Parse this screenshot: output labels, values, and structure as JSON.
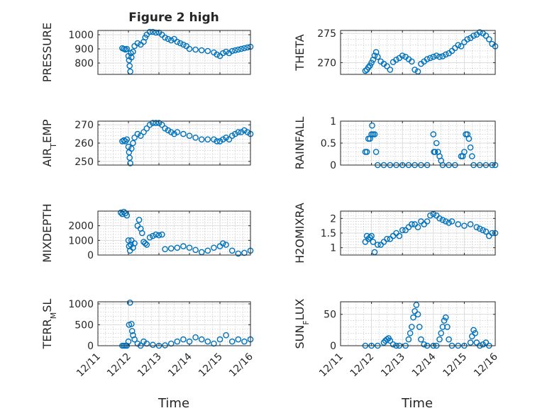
{
  "figure": {
    "title": "Figure 2 high"
  },
  "chart_data": [
    {
      "type": "scatter",
      "ylabel": "PRESSURE",
      "title": "Figure 2 high",
      "ylim": [
        720,
        1030
      ],
      "yticks": [
        800,
        900,
        1000
      ],
      "xlim": [
        0,
        5
      ],
      "xticks": [
        "12/11",
        "12/12",
        "12/13",
        "12/14",
        "12/15",
        "12/16"
      ],
      "x": [
        0.8,
        0.85,
        0.9,
        0.95,
        1.0,
        1.02,
        1.04,
        1.06,
        1.08,
        1.1,
        1.15,
        1.2,
        1.3,
        1.4,
        1.5,
        1.55,
        1.6,
        1.7,
        1.8,
        1.9,
        2.0,
        2.1,
        2.2,
        2.3,
        2.4,
        2.5,
        2.6,
        2.7,
        2.8,
        2.9,
        3.0,
        3.2,
        3.4,
        3.6,
        3.8,
        3.9,
        4.0,
        4.1,
        4.2,
        4.3,
        4.4,
        4.5,
        4.6,
        4.7,
        4.8,
        4.9,
        5.0
      ],
      "y": [
        905,
        900,
        895,
        900,
        850,
        820,
        780,
        740,
        870,
        840,
        880,
        920,
        940,
        930,
        950,
        980,
        1000,
        1020,
        1020,
        1015,
        1015,
        1000,
        980,
        970,
        960,
        970,
        950,
        940,
        930,
        920,
        900,
        895,
        890,
        885,
        875,
        860,
        850,
        870,
        880,
        870,
        885,
        890,
        895,
        900,
        905,
        910,
        915
      ]
    },
    {
      "type": "scatter",
      "ylabel": "THETA",
      "ylim": [
        268,
        275.5
      ],
      "yticks": [
        270,
        275
      ],
      "xlim": [
        0,
        5
      ],
      "xticks": [
        "12/11",
        "12/12",
        "12/13",
        "12/14",
        "12/15",
        "12/16"
      ],
      "x": [
        0.8,
        0.85,
        0.9,
        0.95,
        1.0,
        1.05,
        1.1,
        1.15,
        1.2,
        1.3,
        1.4,
        1.5,
        1.6,
        1.7,
        1.8,
        1.9,
        2.0,
        2.1,
        2.2,
        2.3,
        2.4,
        2.5,
        2.6,
        2.7,
        2.8,
        2.9,
        3.0,
        3.1,
        3.2,
        3.3,
        3.4,
        3.5,
        3.6,
        3.7,
        3.8,
        3.9,
        4.0,
        4.1,
        4.2,
        4.3,
        4.4,
        4.5,
        4.6,
        4.7,
        4.8,
        4.9,
        5.0
      ],
      "y": [
        268.6,
        268.8,
        269.2,
        269.5,
        270.0,
        270.5,
        271.2,
        271.8,
        271.0,
        270.2,
        269.8,
        269.4,
        268.8,
        270.1,
        270.5,
        270.8,
        271.2,
        271.0,
        270.6,
        270.2,
        268.8,
        268.5,
        269.8,
        270.2,
        270.6,
        270.8,
        271.0,
        271.2,
        271.0,
        271.1,
        271.4,
        271.6,
        272.0,
        272.5,
        273.0,
        272.8,
        273.5,
        274.0,
        274.2,
        274.6,
        274.8,
        275.2,
        275.0,
        274.6,
        274.0,
        273.2,
        272.8
      ]
    },
    {
      "type": "scatter",
      "ylabel": "AIR_TEMP",
      "ylim": [
        248,
        272
      ],
      "yticks": [
        250,
        260,
        270
      ],
      "xlim": [
        0,
        5
      ],
      "xticks": [
        "12/11",
        "12/12",
        "12/13",
        "12/14",
        "12/15",
        "12/16"
      ],
      "x": [
        0.8,
        0.85,
        0.9,
        0.95,
        1.0,
        1.02,
        1.04,
        1.06,
        1.1,
        1.15,
        1.2,
        1.3,
        1.4,
        1.5,
        1.6,
        1.7,
        1.8,
        1.9,
        2.0,
        2.1,
        2.2,
        2.3,
        2.4,
        2.5,
        2.6,
        2.8,
        3.0,
        3.2,
        3.4,
        3.6,
        3.8,
        3.9,
        4.0,
        4.1,
        4.2,
        4.3,
        4.4,
        4.5,
        4.6,
        4.7,
        4.8,
        4.9,
        5.0
      ],
      "y": [
        261,
        261.5,
        261,
        262,
        258,
        255,
        252,
        249,
        257,
        260,
        263,
        265,
        264,
        266,
        268,
        270,
        271,
        271,
        271,
        270,
        268,
        267,
        266,
        265,
        266,
        265,
        264,
        263,
        262,
        262,
        262,
        261,
        261,
        262,
        263,
        262,
        264,
        265,
        266,
        266,
        267,
        266,
        265
      ]
    },
    {
      "type": "scatter",
      "ylabel": "RAINFALL",
      "ylim": [
        0,
        1
      ],
      "yticks": [
        0,
        0.5,
        1
      ],
      "xlim": [
        0,
        5
      ],
      "xticks": [
        "12/11",
        "12/12",
        "12/13",
        "12/14",
        "12/15",
        "12/16"
      ],
      "x": [
        0.8,
        0.85,
        0.9,
        0.95,
        1.0,
        1.02,
        1.05,
        1.1,
        1.15,
        1.2,
        1.4,
        1.6,
        1.8,
        2.0,
        2.2,
        2.4,
        2.6,
        2.8,
        3.0,
        3.02,
        3.05,
        3.1,
        3.15,
        3.2,
        3.25,
        3.3,
        3.5,
        3.7,
        3.9,
        3.95,
        4.0,
        4.05,
        4.1,
        4.15,
        4.2,
        4.25,
        4.3,
        4.5,
        4.7,
        4.9,
        5.0
      ],
      "y": [
        0.3,
        0.3,
        0.6,
        0.6,
        0.7,
        0.9,
        0.7,
        0.7,
        0.3,
        0,
        0,
        0,
        0,
        0,
        0,
        0,
        0,
        0,
        0.7,
        0.3,
        0.3,
        0.5,
        0.3,
        0.2,
        0.1,
        0,
        0,
        0,
        0.2,
        0.2,
        0.3,
        0.7,
        0.7,
        0.6,
        0.4,
        0.2,
        0,
        0,
        0,
        0,
        0
      ]
    },
    {
      "type": "scatter",
      "ylabel": "MIXDEPTH",
      "ylim": [
        0,
        3000
      ],
      "yticks": [
        0,
        1000,
        2000
      ],
      "xlim": [
        0,
        5
      ],
      "xticks": [
        "12/11",
        "12/12",
        "12/13",
        "12/14",
        "12/15",
        "12/16"
      ],
      "x": [
        0.75,
        0.8,
        0.85,
        0.9,
        0.95,
        1.0,
        1.02,
        1.05,
        1.08,
        1.1,
        1.15,
        1.2,
        1.3,
        1.35,
        1.4,
        1.45,
        1.5,
        1.55,
        1.6,
        1.7,
        1.8,
        1.9,
        2.0,
        2.1,
        2.2,
        2.4,
        2.6,
        2.8,
        3.0,
        3.2,
        3.4,
        3.6,
        3.8,
        4.0,
        4.1,
        4.2,
        4.4,
        4.6,
        4.8,
        5.0
      ],
      "y": [
        2900,
        2800,
        2950,
        2850,
        2700,
        1000,
        600,
        300,
        700,
        1000,
        500,
        800,
        2000,
        2400,
        1800,
        1500,
        900,
        800,
        700,
        1200,
        1300,
        1400,
        1350,
        1400,
        400,
        450,
        500,
        600,
        500,
        350,
        200,
        300,
        500,
        600,
        800,
        700,
        300,
        100,
        150,
        300
      ]
    },
    {
      "type": "scatter",
      "ylabel": "H2OMIXRA",
      "ylim": [
        0.75,
        2.25
      ],
      "yticks": [
        1,
        1.5,
        2
      ],
      "xlim": [
        0,
        5
      ],
      "xticks": [
        "12/11",
        "12/12",
        "12/13",
        "12/14",
        "12/15",
        "12/16"
      ],
      "x": [
        0.8,
        0.85,
        0.9,
        0.95,
        1.0,
        1.05,
        1.1,
        1.2,
        1.3,
        1.4,
        1.5,
        1.6,
        1.7,
        1.8,
        1.9,
        2.0,
        2.1,
        2.2,
        2.3,
        2.4,
        2.5,
        2.6,
        2.7,
        2.8,
        2.9,
        3.0,
        3.1,
        3.2,
        3.3,
        3.4,
        3.5,
        3.6,
        3.8,
        4.0,
        4.2,
        4.4,
        4.5,
        4.6,
        4.7,
        4.8,
        4.9,
        5.0
      ],
      "y": [
        1.2,
        1.4,
        1.3,
        1.35,
        1.4,
        1.2,
        0.85,
        1.1,
        1.1,
        1.2,
        1.3,
        1.3,
        1.4,
        1.5,
        1.4,
        1.6,
        1.6,
        1.7,
        1.8,
        1.8,
        1.7,
        1.9,
        1.8,
        1.9,
        2.1,
        2.15,
        2.1,
        2.0,
        1.95,
        1.9,
        1.85,
        1.9,
        1.8,
        1.75,
        1.8,
        1.7,
        1.65,
        1.6,
        1.55,
        1.4,
        1.5,
        1.5
      ]
    },
    {
      "type": "scatter",
      "ylabel": "TERR_MSL",
      "ylim": [
        0,
        1050
      ],
      "yticks": [
        0,
        500,
        1000
      ],
      "xlim": [
        0,
        5
      ],
      "xticks": [
        "12/11",
        "12/12",
        "12/13",
        "12/14",
        "12/15",
        "12/16"
      ],
      "x": [
        0.8,
        0.85,
        0.9,
        0.95,
        1.0,
        1.02,
        1.05,
        1.1,
        1.12,
        1.15,
        1.2,
        1.3,
        1.4,
        1.5,
        1.6,
        1.8,
        2.0,
        2.2,
        2.4,
        2.6,
        2.8,
        3.0,
        3.2,
        3.4,
        3.6,
        3.8,
        4.0,
        4.2,
        4.4,
        4.6,
        4.8,
        5.0
      ],
      "y": [
        0,
        0,
        0,
        0,
        100,
        500,
        1030,
        520,
        350,
        250,
        150,
        50,
        0,
        100,
        50,
        20,
        0,
        10,
        50,
        100,
        150,
        100,
        200,
        150,
        100,
        50,
        150,
        250,
        100,
        150,
        100,
        150
      ]
    },
    {
      "type": "scatter",
      "ylabel": "SUN_FLUX",
      "ylim": [
        0,
        70
      ],
      "yticks": [
        0,
        50
      ],
      "xlim": [
        0,
        5
      ],
      "xticks": [
        "12/11",
        "12/12",
        "12/13",
        "12/14",
        "12/15",
        "12/16"
      ],
      "x": [
        0.8,
        1.0,
        1.2,
        1.4,
        1.45,
        1.5,
        1.55,
        1.6,
        1.7,
        1.8,
        1.9,
        2.1,
        2.2,
        2.25,
        2.3,
        2.35,
        2.4,
        2.45,
        2.5,
        2.55,
        2.6,
        2.7,
        2.8,
        3.0,
        3.1,
        3.2,
        3.25,
        3.3,
        3.35,
        3.4,
        3.45,
        3.5,
        3.6,
        3.8,
        4.0,
        4.2,
        4.25,
        4.3,
        4.35,
        4.4,
        4.5,
        4.6,
        4.7,
        4.8
      ],
      "y": [
        0,
        0,
        0,
        5,
        8,
        10,
        12,
        8,
        2,
        0,
        0,
        0,
        10,
        20,
        30,
        45,
        55,
        65,
        50,
        30,
        10,
        2,
        0,
        0,
        0,
        10,
        20,
        30,
        40,
        45,
        30,
        10,
        0,
        0,
        0,
        5,
        15,
        25,
        20,
        5,
        0,
        2,
        5,
        0
      ]
    }
  ],
  "xlabel_left": "Time",
  "xlabel_right": "Time",
  "colors": {
    "marker": "#0072BD",
    "axis": "#262626",
    "grid": "#d9d9d9",
    "minor_grid": "#bfbfbf"
  }
}
